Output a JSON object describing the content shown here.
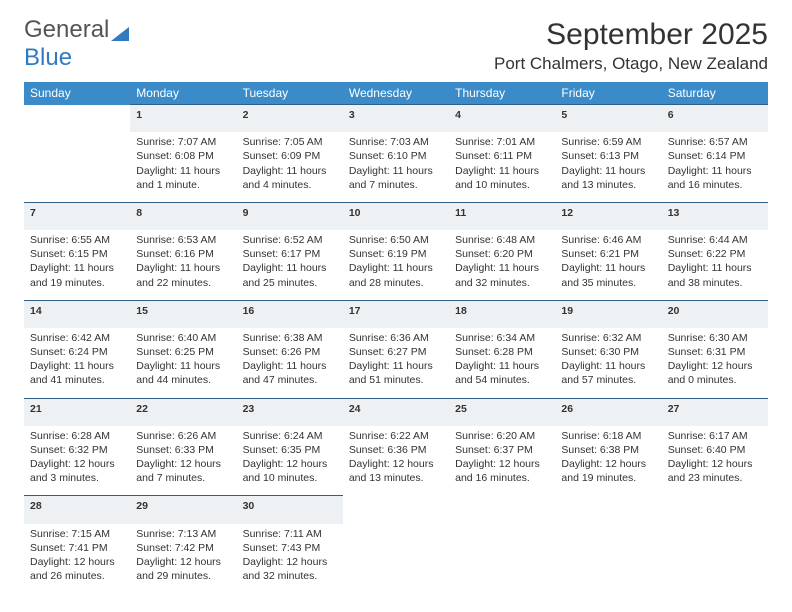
{
  "logo": {
    "part1": "General",
    "part2": "Blue"
  },
  "title": "September 2025",
  "subtitle": "Port Chalmers, Otago, New Zealand",
  "colors": {
    "header_bg": "#3b8bc9",
    "daynum_bg": "#eef1f3",
    "daynum_border": "#2f5e88",
    "logo_blue": "#2f7ac0"
  },
  "day_headers": [
    "Sunday",
    "Monday",
    "Tuesday",
    "Wednesday",
    "Thursday",
    "Friday",
    "Saturday"
  ],
  "weeks": [
    {
      "nums": [
        "",
        "1",
        "2",
        "3",
        "4",
        "5",
        "6"
      ],
      "cells": [
        [],
        [
          "Sunrise: 7:07 AM",
          "Sunset: 6:08 PM",
          "Daylight: 11 hours and 1 minute."
        ],
        [
          "Sunrise: 7:05 AM",
          "Sunset: 6:09 PM",
          "Daylight: 11 hours and 4 minutes."
        ],
        [
          "Sunrise: 7:03 AM",
          "Sunset: 6:10 PM",
          "Daylight: 11 hours and 7 minutes."
        ],
        [
          "Sunrise: 7:01 AM",
          "Sunset: 6:11 PM",
          "Daylight: 11 hours and 10 minutes."
        ],
        [
          "Sunrise: 6:59 AM",
          "Sunset: 6:13 PM",
          "Daylight: 11 hours and 13 minutes."
        ],
        [
          "Sunrise: 6:57 AM",
          "Sunset: 6:14 PM",
          "Daylight: 11 hours and 16 minutes."
        ]
      ]
    },
    {
      "nums": [
        "7",
        "8",
        "9",
        "10",
        "11",
        "12",
        "13"
      ],
      "cells": [
        [
          "Sunrise: 6:55 AM",
          "Sunset: 6:15 PM",
          "Daylight: 11 hours and 19 minutes."
        ],
        [
          "Sunrise: 6:53 AM",
          "Sunset: 6:16 PM",
          "Daylight: 11 hours and 22 minutes."
        ],
        [
          "Sunrise: 6:52 AM",
          "Sunset: 6:17 PM",
          "Daylight: 11 hours and 25 minutes."
        ],
        [
          "Sunrise: 6:50 AM",
          "Sunset: 6:19 PM",
          "Daylight: 11 hours and 28 minutes."
        ],
        [
          "Sunrise: 6:48 AM",
          "Sunset: 6:20 PM",
          "Daylight: 11 hours and 32 minutes."
        ],
        [
          "Sunrise: 6:46 AM",
          "Sunset: 6:21 PM",
          "Daylight: 11 hours and 35 minutes."
        ],
        [
          "Sunrise: 6:44 AM",
          "Sunset: 6:22 PM",
          "Daylight: 11 hours and 38 minutes."
        ]
      ]
    },
    {
      "nums": [
        "14",
        "15",
        "16",
        "17",
        "18",
        "19",
        "20"
      ],
      "cells": [
        [
          "Sunrise: 6:42 AM",
          "Sunset: 6:24 PM",
          "Daylight: 11 hours and 41 minutes."
        ],
        [
          "Sunrise: 6:40 AM",
          "Sunset: 6:25 PM",
          "Daylight: 11 hours and 44 minutes."
        ],
        [
          "Sunrise: 6:38 AM",
          "Sunset: 6:26 PM",
          "Daylight: 11 hours and 47 minutes."
        ],
        [
          "Sunrise: 6:36 AM",
          "Sunset: 6:27 PM",
          "Daylight: 11 hours and 51 minutes."
        ],
        [
          "Sunrise: 6:34 AM",
          "Sunset: 6:28 PM",
          "Daylight: 11 hours and 54 minutes."
        ],
        [
          "Sunrise: 6:32 AM",
          "Sunset: 6:30 PM",
          "Daylight: 11 hours and 57 minutes."
        ],
        [
          "Sunrise: 6:30 AM",
          "Sunset: 6:31 PM",
          "Daylight: 12 hours and 0 minutes."
        ]
      ]
    },
    {
      "nums": [
        "21",
        "22",
        "23",
        "24",
        "25",
        "26",
        "27"
      ],
      "cells": [
        [
          "Sunrise: 6:28 AM",
          "Sunset: 6:32 PM",
          "Daylight: 12 hours and 3 minutes."
        ],
        [
          "Sunrise: 6:26 AM",
          "Sunset: 6:33 PM",
          "Daylight: 12 hours and 7 minutes."
        ],
        [
          "Sunrise: 6:24 AM",
          "Sunset: 6:35 PM",
          "Daylight: 12 hours and 10 minutes."
        ],
        [
          "Sunrise: 6:22 AM",
          "Sunset: 6:36 PM",
          "Daylight: 12 hours and 13 minutes."
        ],
        [
          "Sunrise: 6:20 AM",
          "Sunset: 6:37 PM",
          "Daylight: 12 hours and 16 minutes."
        ],
        [
          "Sunrise: 6:18 AM",
          "Sunset: 6:38 PM",
          "Daylight: 12 hours and 19 minutes."
        ],
        [
          "Sunrise: 6:17 AM",
          "Sunset: 6:40 PM",
          "Daylight: 12 hours and 23 minutes."
        ]
      ]
    },
    {
      "nums": [
        "28",
        "29",
        "30",
        "",
        "",
        "",
        ""
      ],
      "cells": [
        [
          "Sunrise: 7:15 AM",
          "Sunset: 7:41 PM",
          "Daylight: 12 hours and 26 minutes."
        ],
        [
          "Sunrise: 7:13 AM",
          "Sunset: 7:42 PM",
          "Daylight: 12 hours and 29 minutes."
        ],
        [
          "Sunrise: 7:11 AM",
          "Sunset: 7:43 PM",
          "Daylight: 12 hours and 32 minutes."
        ],
        [],
        [],
        [],
        []
      ]
    }
  ]
}
